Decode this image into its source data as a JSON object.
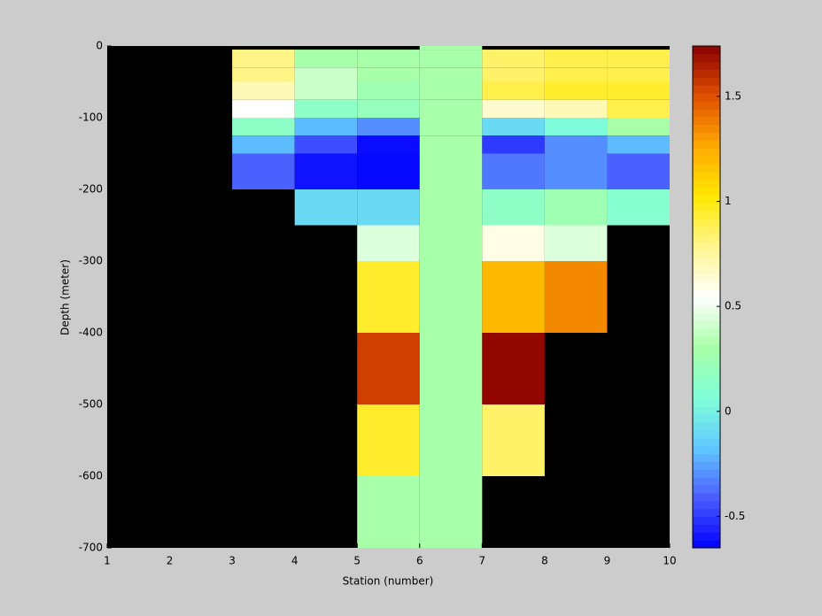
{
  "chart_data": {
    "type": "heatmap",
    "xlabel": "Station (number)",
    "ylabel": "Depth (meter)",
    "xlim": [
      1,
      10
    ],
    "xticks": [
      1,
      2,
      3,
      4,
      5,
      6,
      7,
      8,
      9,
      10
    ],
    "ylim": [
      -700,
      0
    ],
    "yticks": [
      0,
      -100,
      -200,
      -300,
      -400,
      -500,
      -600,
      -700
    ],
    "x_edges": [
      1,
      2,
      3,
      4,
      5,
      6,
      7,
      8,
      9,
      10
    ],
    "y_edges": [
      0,
      -5,
      -30,
      -50,
      -75,
      -100,
      -125,
      -150,
      -200,
      -250,
      -300,
      -400,
      -500,
      -600,
      -700
    ],
    "values": [
      [
        null,
        null,
        null,
        null,
        null,
        0.3,
        null,
        null,
        null
      ],
      [
        null,
        null,
        0.8,
        0.3,
        0.3,
        0.3,
        0.85,
        0.9,
        0.9
      ],
      [
        null,
        null,
        0.8,
        0.4,
        0.3,
        0.3,
        0.85,
        0.9,
        0.9
      ],
      [
        null,
        null,
        0.7,
        0.4,
        0.25,
        0.3,
        0.9,
        0.95,
        0.95
      ],
      [
        null,
        null,
        0.55,
        0.15,
        0.2,
        0.3,
        0.65,
        0.7,
        0.9
      ],
      [
        null,
        null,
        0.15,
        -0.2,
        -0.3,
        0.3,
        -0.1,
        0.05,
        0.3
      ],
      [
        null,
        null,
        -0.2,
        -0.45,
        -0.62,
        0.3,
        -0.5,
        -0.3,
        -0.2
      ],
      [
        null,
        null,
        -0.4,
        -0.6,
        -0.63,
        0.3,
        -0.35,
        -0.3,
        -0.4
      ],
      [
        null,
        null,
        null,
        -0.1,
        -0.1,
        0.3,
        0.15,
        0.25,
        0.1
      ],
      [
        null,
        null,
        null,
        null,
        0.45,
        0.3,
        0.6,
        0.45,
        null
      ],
      [
        null,
        null,
        null,
        null,
        0.95,
        0.3,
        1.2,
        1.35,
        null
      ],
      [
        null,
        null,
        null,
        null,
        1.55,
        0.3,
        1.72,
        null,
        null
      ],
      [
        null,
        null,
        null,
        null,
        0.95,
        0.3,
        0.85,
        null,
        null
      ],
      [
        null,
        null,
        null,
        null,
        0.3,
        0.3,
        null,
        null,
        null
      ]
    ],
    "missing_color": "#000000",
    "clim": [
      -0.65,
      1.74
    ],
    "cticks": [
      -0.5,
      0,
      0.5,
      1,
      1.5
    ],
    "colormap": [
      "#0000ff",
      "#4a5cff",
      "#60c8ff",
      "#80ffd8",
      "#a8ffa8",
      "#ffffff",
      "#fff690",
      "#ffe800",
      "#ffaa00",
      "#e05000",
      "#8b0000"
    ]
  }
}
